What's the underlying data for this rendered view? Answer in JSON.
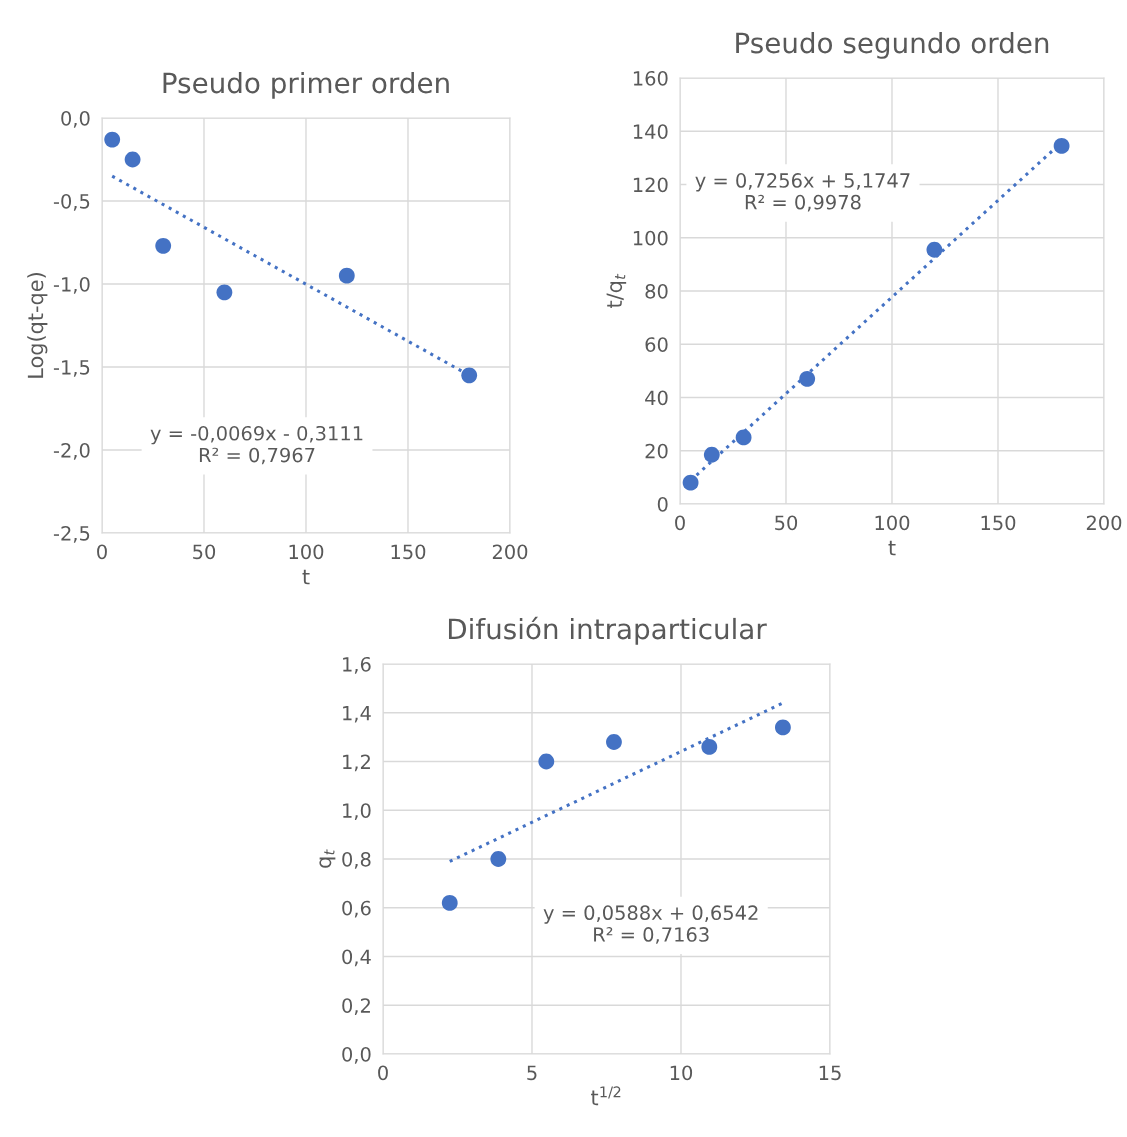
{
  "chart_data": [
    {
      "type": "scatter",
      "title": "Pseudo primer orden",
      "xlabel": "t",
      "ylabel": "Log(qt-qe)",
      "marker": "circle",
      "grid": true,
      "xlim": [
        0,
        200
      ],
      "xticks": [
        0,
        50,
        100,
        150,
        200
      ],
      "ylim": [
        -2.5,
        0
      ],
      "yticks": [
        {
          "value": -2.5,
          "label": "-2,5"
        },
        {
          "value": -2.0,
          "label": "-2,0"
        },
        {
          "value": -1.5,
          "label": "-1,5"
        },
        {
          "value": -1.0,
          "label": "-1,0"
        },
        {
          "value": -0.5,
          "label": "-0,5"
        },
        {
          "value": 0,
          "label": "0,0"
        }
      ],
      "annotations": [
        "y = -0,0069x - 0,3111\nR² = 0,7967"
      ],
      "series": [
        {
          "color": "#4472c4",
          "x": [
            5,
            15,
            30,
            60,
            120,
            180
          ],
          "values": [
            -0.13,
            -0.25,
            -0.77,
            -1.05,
            -0.95,
            -1.55
          ]
        },
        {
          "type": "line",
          "color": "#4472c4",
          "line_style": "dotted",
          "marker": "none",
          "x": [
            5,
            180
          ],
          "values": [
            -0.35,
            -1.55
          ]
        }
      ]
    },
    {
      "type": "scatter",
      "title": "Pseudo segundo orden",
      "xlabel": "t",
      "ylabel": "t/q$_{t}$",
      "marker": "circle",
      "grid": true,
      "xlim": [
        0,
        200
      ],
      "xticks": [
        0,
        50,
        100,
        150,
        200
      ],
      "ylim": [
        0,
        160
      ],
      "yticks": [
        0,
        20,
        40,
        60,
        80,
        100,
        120,
        140,
        160
      ],
      "annotations": [
        "y = 0,7256x + 5,1747\nR² = 0,9978"
      ],
      "series": [
        {
          "color": "#4472c4",
          "x": [
            5,
            15,
            30,
            60,
            120,
            180
          ],
          "values": [
            8,
            18.5,
            25,
            47,
            95.5,
            134.5
          ]
        },
        {
          "type": "line",
          "color": "#4472c4",
          "line_style": "dotted",
          "marker": "none",
          "x": [
            5,
            180
          ],
          "values": [
            8.8,
            135.8
          ]
        }
      ]
    },
    {
      "type": "scatter",
      "title": "Difusión intraparticular",
      "xlabel": "t$^{1/2}$",
      "ylabel": "q$_{t}$",
      "marker": "circle",
      "grid": true,
      "xlim": [
        0,
        15
      ],
      "xticks": [
        0,
        5,
        10,
        15
      ],
      "ylim": [
        0,
        1.6
      ],
      "yticks": [
        {
          "value": 0,
          "label": "0,0"
        },
        {
          "value": 0.2,
          "label": "0,2"
        },
        {
          "value": 0.4,
          "label": "0,4"
        },
        {
          "value": 0.6,
          "label": "0,6"
        },
        {
          "value": 0.8,
          "label": "0,8"
        },
        {
          "value": 1.0,
          "label": "1,0"
        },
        {
          "value": 1.2,
          "label": "1,2"
        },
        {
          "value": 1.4,
          "label": "1,4"
        },
        {
          "value": 1.6,
          "label": "1,6"
        }
      ],
      "annotations": [
        "y = 0,0588x + 0,6542\nR² = 0,7163"
      ],
      "series": [
        {
          "color": "#4472c4",
          "x": [
            2.24,
            3.87,
            5.48,
            7.75,
            10.95,
            13.42
          ],
          "values": [
            0.62,
            0.8,
            1.2,
            1.28,
            1.26,
            1.34
          ]
        },
        {
          "type": "line",
          "color": "#4472c4",
          "line_style": "dotted",
          "marker": "none",
          "x": [
            2.24,
            13.42
          ],
          "values": [
            0.79,
            1.44
          ]
        }
      ]
    }
  ]
}
